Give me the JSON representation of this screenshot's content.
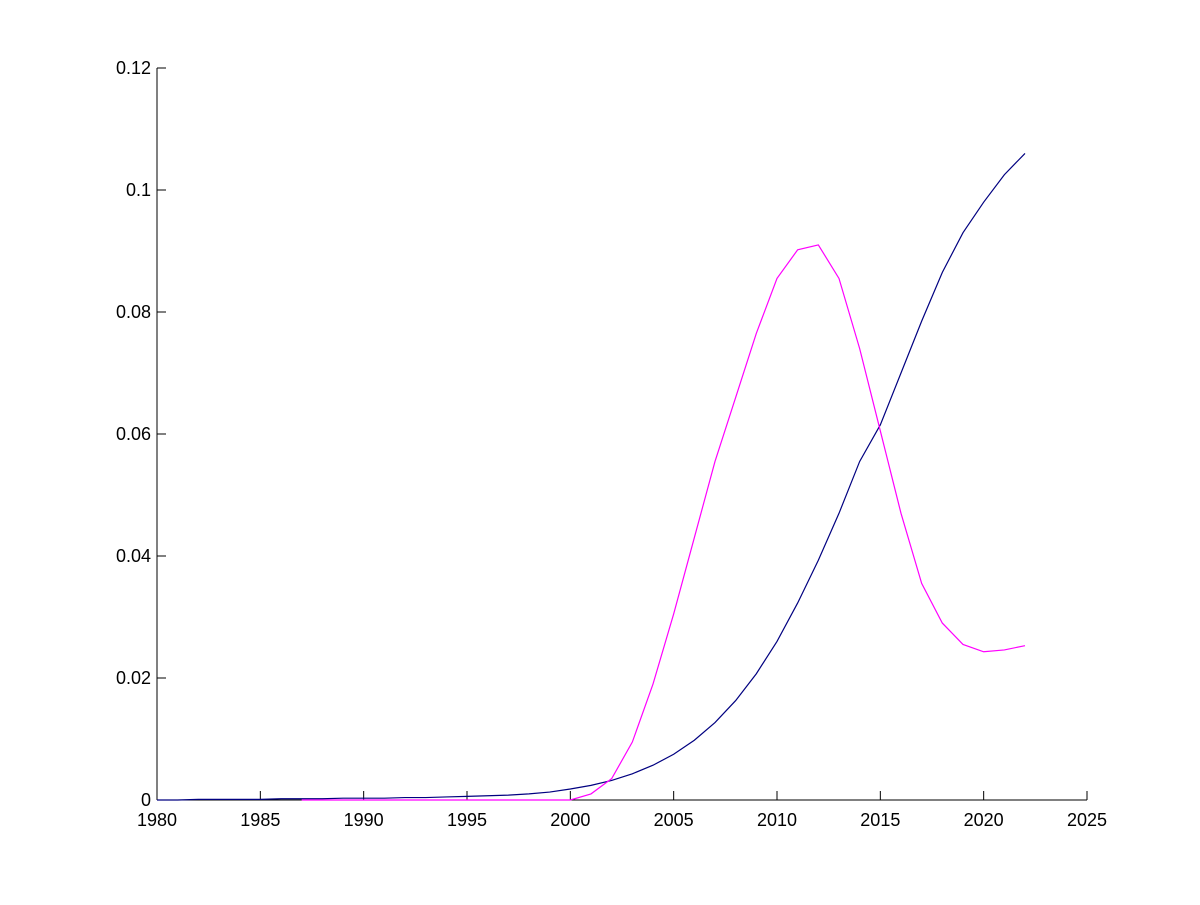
{
  "chart_data": {
    "type": "line",
    "x": [
      1980,
      1981,
      1982,
      1983,
      1984,
      1985,
      1986,
      1987,
      1988,
      1989,
      1990,
      1991,
      1992,
      1993,
      1994,
      1995,
      1996,
      1997,
      1998,
      1999,
      2000,
      2001,
      2002,
      2003,
      2004,
      2005,
      2006,
      2007,
      2008,
      2009,
      2010,
      2011,
      2012,
      2013,
      2014,
      2015,
      2016,
      2017,
      2018,
      2019,
      2020,
      2021,
      2022
    ],
    "series": [
      {
        "color": "#000080",
        "values": [
          0,
          0,
          0.0001,
          0.0001,
          0.0001,
          0.0001,
          0.0002,
          0.0002,
          0.0002,
          0.0003,
          0.0003,
          0.0003,
          0.0004,
          0.0004,
          0.0005,
          0.0006,
          0.0007,
          0.0008,
          0.001,
          0.0013,
          0.0018,
          0.0024,
          0.0032,
          0.0043,
          0.0057,
          0.0075,
          0.0098,
          0.0127,
          0.0163,
          0.0207,
          0.026,
          0.0323,
          0.0393,
          0.047,
          0.0555,
          0.0615,
          0.07,
          0.0785,
          0.0865,
          0.093,
          0.098,
          0.1025,
          0.106
        ]
      },
      {
        "color": "#ff00ff",
        "values": [
          null,
          null,
          null,
          null,
          null,
          null,
          null,
          0,
          0,
          0,
          0,
          0,
          0,
          0,
          0,
          0,
          0,
          0,
          0,
          0,
          0,
          0.001,
          0.0035,
          0.0095,
          0.019,
          0.0305,
          0.043,
          0.0555,
          0.066,
          0.0765,
          0.0855,
          0.0902,
          0.091,
          0.0855,
          0.074,
          0.0605,
          0.047,
          0.0355,
          0.029,
          0.0255,
          0.0243,
          0.0246,
          0.0253
        ]
      }
    ],
    "xlim": [
      1980,
      2025
    ],
    "xticks": [
      1980,
      1985,
      1990,
      1995,
      2000,
      2005,
      2010,
      2015,
      2020,
      2025
    ],
    "ylim": [
      0,
      0.12
    ],
    "yticks": [
      0,
      0.02,
      0.04,
      0.06,
      0.08,
      0.1,
      0.12
    ],
    "grid": false
  }
}
